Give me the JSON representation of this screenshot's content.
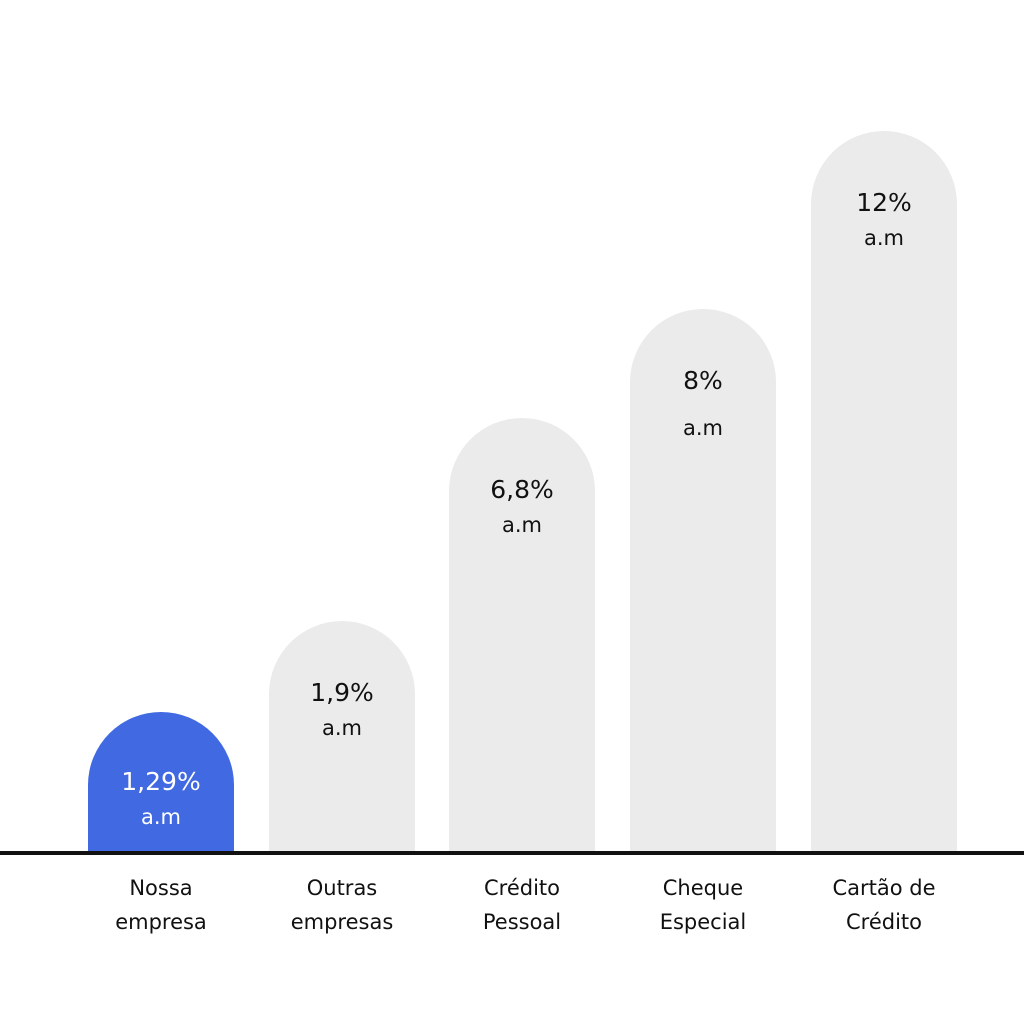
{
  "chart_data": {
    "type": "bar",
    "title": "",
    "xlabel": "",
    "ylabel": "",
    "ylim": [
      0,
      14
    ],
    "grid": false,
    "unit": "a.m",
    "categories": [
      [
        "Nossa",
        "empresa"
      ],
      [
        "Outras",
        "empresas"
      ],
      [
        "Crédito",
        "Pessoal"
      ],
      [
        "Cheque",
        "Especial"
      ],
      [
        "Cartão de",
        "Crédito"
      ]
    ],
    "values": [
      1.29,
      1.9,
      6.8,
      8,
      12
    ],
    "value_labels": [
      "1,29%",
      "1,9%",
      "6,8%",
      "8%",
      "12%"
    ],
    "highlight_index": 0
  },
  "colors": {
    "highlight": "#4169E1",
    "bar": "#EBEBEB",
    "axis": "#111111",
    "text": "#111111",
    "highlight_text": "#FFFFFF"
  }
}
